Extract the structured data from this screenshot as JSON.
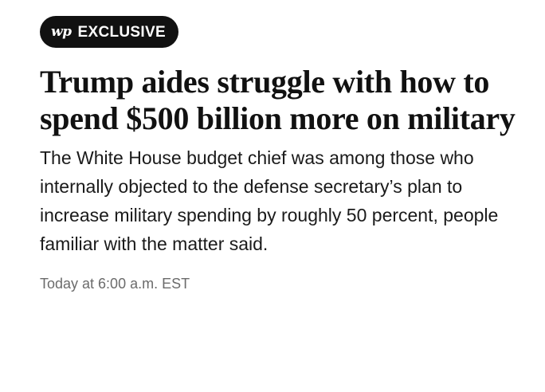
{
  "badge": {
    "logo": "wp",
    "label": "EXCLUSIVE"
  },
  "article": {
    "headline": "Trump aides struggle with how to spend $500 billion more on military",
    "dek": "The White House budget chief was among those who internally objected to the defense secretary’s plan to increase military spending by roughly 50 percent, people familiar with the matter said.",
    "timestamp": "Today at 6:00 a.m. EST"
  }
}
